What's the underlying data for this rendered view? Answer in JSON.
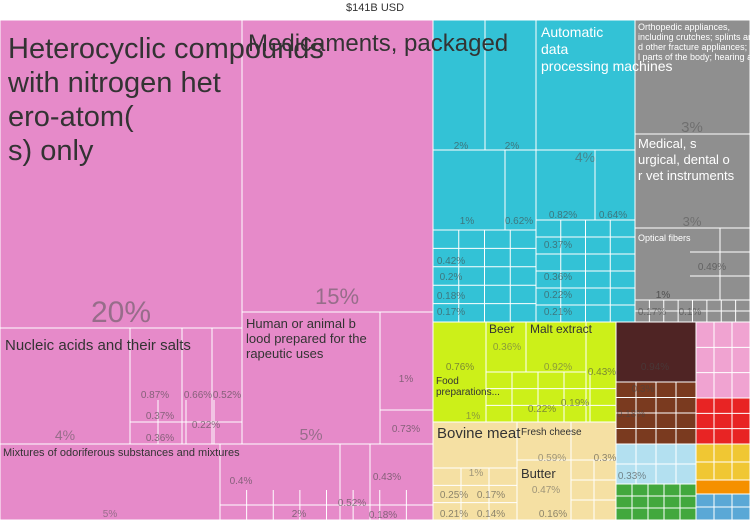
{
  "chart_data": {
    "type": "treemap",
    "title": "$141B USD",
    "colors": {
      "chemicals": "#e68ac9",
      "machines": "#33c2d6",
      "instruments": "#8f8f8f",
      "vegetable_products": "#ccf019",
      "animal_products": "#f5e0a3",
      "textiles": "#4f2424",
      "metals": "#f0a3d1",
      "miscellaneous": "#b3e0f0",
      "foodstuffs": "#42a83d",
      "transportation": "#e82424",
      "paper": "#f0c733",
      "minerals": "#f59000"
    },
    "items": [
      {
        "name": "Heterocyclic compounds with nitrogen hetero-atom(s) only",
        "share": "20%",
        "sector": "chemicals"
      },
      {
        "name": "Medicaments, packaged",
        "share": "15%",
        "sector": "chemicals"
      },
      {
        "name": "Nucleic acids and their salts",
        "share": "4%",
        "sector": "chemicals"
      },
      {
        "name": "Human or animal blood prepared for therapeutic uses",
        "share": "5%",
        "sector": "chemicals"
      },
      {
        "name": "Mixtures of odoriferous substances and mixtures",
        "share": "5%",
        "sector": "chemicals"
      },
      {
        "name": "Automatic data processing machines",
        "share": "4%",
        "sector": "machines"
      },
      {
        "name": "Orthopedic appliances, including crutches; splints and other fracture appliances; artificial parts of the body; hearing aids",
        "share": "3%",
        "sector": "instruments"
      },
      {
        "name": "Medical, surgical, dental or vet instruments",
        "share": "3%",
        "sector": "instruments"
      },
      {
        "name": "Optical fibers",
        "share": "1%",
        "sector": "instruments"
      },
      {
        "name": "Beer",
        "share": "0.36%",
        "sector": "vegetable_products"
      },
      {
        "name": "Malt extract",
        "share": "0.92%",
        "sector": "vegetable_products"
      },
      {
        "name": "Food preparations...",
        "share": "1%",
        "sector": "vegetable_products"
      },
      {
        "name": "Bovine meat",
        "share": "1%",
        "sector": "animal_products"
      },
      {
        "name": "Fresh cheese",
        "share": "0.59%",
        "sector": "animal_products"
      },
      {
        "name": "Butter",
        "share": "0.47%",
        "sector": "animal_products"
      }
    ],
    "other_values": [
      "0.87%",
      "0.66%",
      "0.52%",
      "0.37%",
      "0.36%",
      "0.22%",
      "1%",
      "0.73%",
      "2%",
      "0.4%",
      "0.52%",
      "0.43%",
      "0.18%",
      "2%",
      "2%",
      "1%",
      "0.62%",
      "0.82%",
      "0.64%",
      "0.42%",
      "0.2%",
      "0.18%",
      "0.17%",
      "0.37%",
      "0.36%",
      "0.22%",
      "0.21%",
      "0.49%",
      "1%",
      "0.17%",
      "0.1%",
      "0.76%",
      "0.43%",
      "0.22%",
      "0.19%",
      "0.25%",
      "0.17%",
      "0.21%",
      "0.14%",
      "0.16%",
      "0.3%",
      "0.94%",
      "0.3%",
      "0.18%",
      "0.33%"
    ]
  }
}
